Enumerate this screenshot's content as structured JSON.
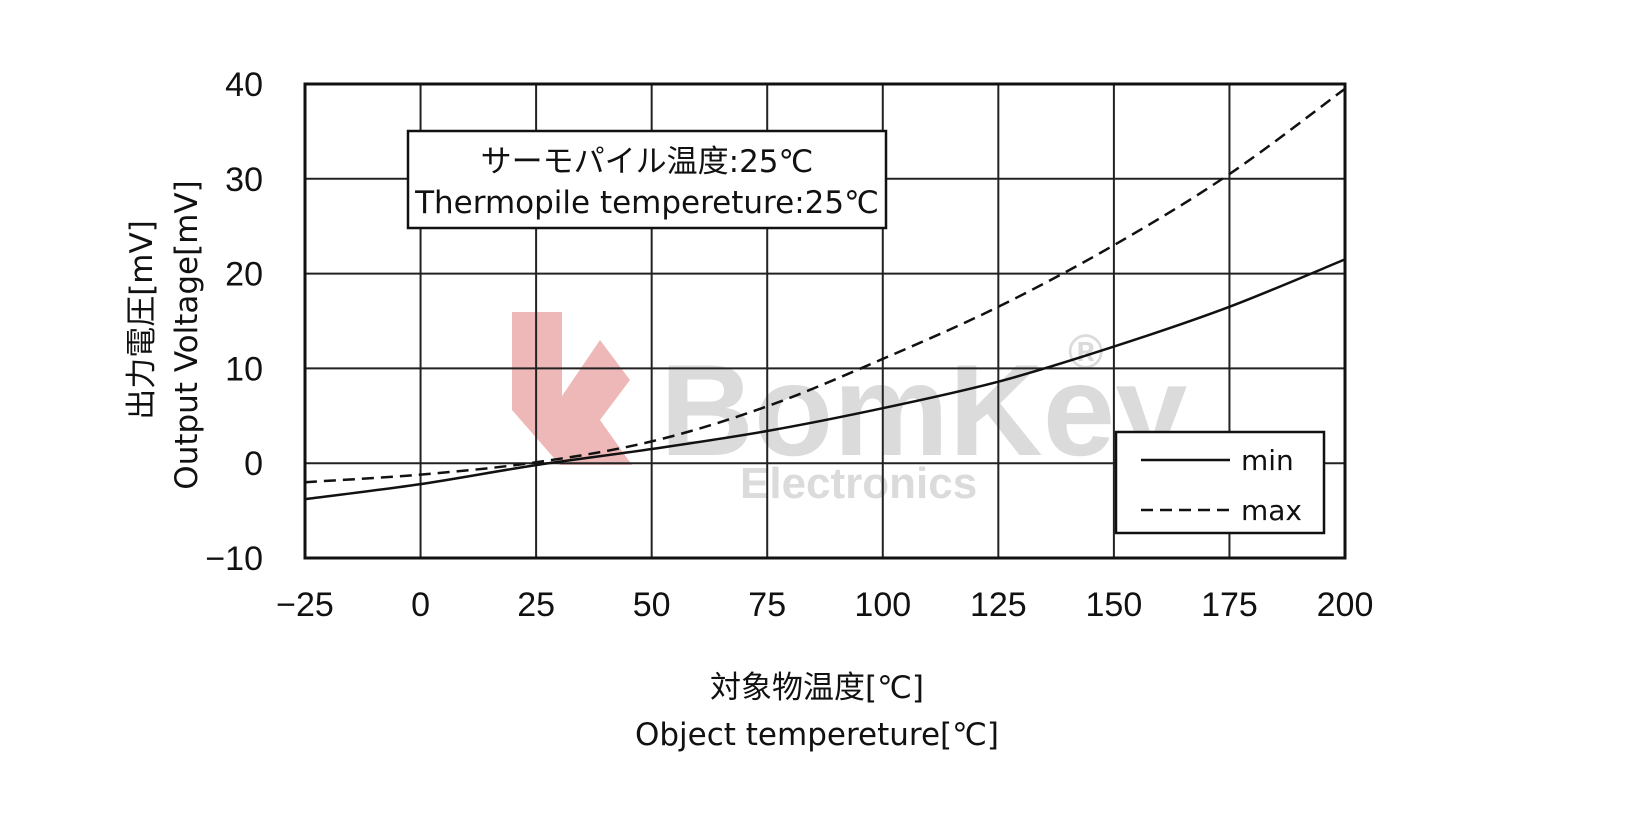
{
  "chart_data": {
    "type": "line",
    "title": "",
    "xlabel_jp": "対象物温度[℃]",
    "xlabel": "Object tempereture[℃]",
    "ylabel_jp": "出力電圧[mV]",
    "ylabel": "Output Voltage[mV]",
    "xlim": [
      -25,
      200
    ],
    "ylim": [
      -10,
      40
    ],
    "xticks": [
      -25,
      0,
      25,
      50,
      75,
      100,
      125,
      150,
      175,
      200
    ],
    "yticks": [
      -10,
      0,
      10,
      20,
      30,
      40
    ],
    "xtick_labels": [
      "−25",
      "0",
      "25",
      "50",
      "75",
      "100",
      "125",
      "150",
      "175",
      "200"
    ],
    "ytick_labels": [
      "−10",
      "0",
      "10",
      "20",
      "30",
      "40"
    ],
    "grid": true,
    "annotation": {
      "line1": "サーモパイル温度:25℃",
      "line2": "Thermopile tempereture:25℃"
    },
    "legend_position": "bottom-right",
    "series": [
      {
        "name": "min",
        "style": "solid",
        "x": [
          -25,
          0,
          25,
          50,
          75,
          100,
          125,
          150,
          175,
          200
        ],
        "y": [
          -3.8,
          -2.2,
          -0.2,
          1.5,
          3.4,
          5.8,
          8.6,
          12.3,
          16.5,
          21.5
        ]
      },
      {
        "name": "max",
        "style": "dashed",
        "x": [
          -25,
          0,
          25,
          50,
          75,
          100,
          125,
          150,
          175,
          200
        ],
        "y": [
          -2.0,
          -1.2,
          0.1,
          2.3,
          6.0,
          11.0,
          16.5,
          23.0,
          30.5,
          39.5
        ]
      }
    ]
  },
  "watermark": {
    "brand": "BomKey",
    "sub": "Electronics",
    "registered": "®",
    "brand_color": "#e89a9a",
    "text_color": "#cfcfcf"
  }
}
